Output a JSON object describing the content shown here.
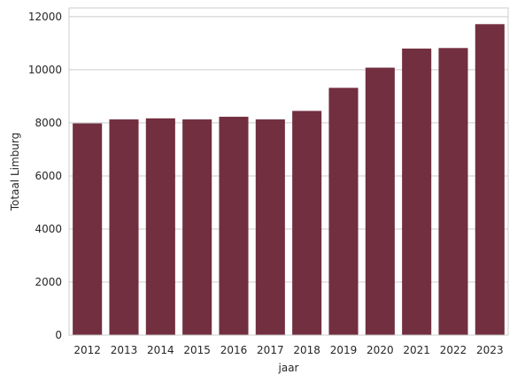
{
  "chart_data": {
    "type": "bar",
    "title": "",
    "xlabel": "jaar",
    "ylabel": "Totaal Limburg",
    "categories": [
      "2012",
      "2013",
      "2014",
      "2015",
      "2016",
      "2017",
      "2018",
      "2019",
      "2020",
      "2021",
      "2022",
      "2023"
    ],
    "values": [
      7980,
      8130,
      8170,
      8130,
      8230,
      8130,
      8450,
      9320,
      10080,
      10800,
      10820,
      11720
    ],
    "ylim": [
      0,
      12330
    ],
    "yticks": [
      0,
      2000,
      4000,
      6000,
      8000,
      10000,
      12000
    ],
    "grid": "horizontal",
    "bar_color": "#722f40",
    "grid_color": "#cccccc",
    "frame_color": "#cccccc"
  }
}
